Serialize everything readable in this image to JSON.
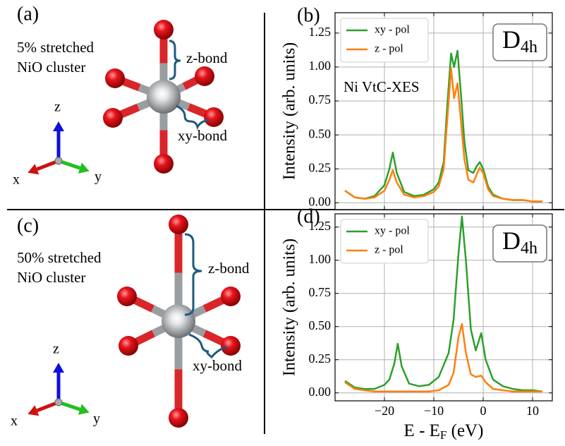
{
  "panels": [
    {
      "label": "(a)",
      "text": [
        "5% stretched",
        "NiO cluster"
      ],
      "z_bond": "z-bond",
      "xy_bond": "xy-bond",
      "axes": [
        "x",
        "y",
        "z"
      ]
    },
    {
      "label": "(c)",
      "text": [
        "50% stretched",
        "NiO cluster"
      ],
      "z_bond": "z-bond",
      "xy_bond": "xy-bond",
      "axes": [
        "x",
        "y",
        "z"
      ]
    }
  ],
  "chart_data": [
    {
      "type": "line",
      "panel_label": "(b)",
      "ylabel": "Intensity (arb. units)",
      "annotation": "Ni VtC-XES",
      "symmetry": {
        "base": "D",
        "sub": "4h"
      },
      "xlim": [
        -30,
        14
      ],
      "ylim": [
        -0.05,
        1.4
      ],
      "xticks": [
        {
          "value": -20,
          "label": "−20"
        },
        {
          "value": -10,
          "label": "−10"
        },
        0,
        10
      ],
      "xtick_labels": false,
      "yticks": [
        {
          "value": 0,
          "label": "0.00"
        },
        {
          "value": 0.25,
          "label": "0.25"
        },
        {
          "value": 0.5,
          "label": "0.50"
        },
        {
          "value": 0.75,
          "label": "0.75"
        },
        {
          "value": 1.0,
          "label": "1.00"
        },
        {
          "value": 1.25,
          "label": "1.25"
        }
      ],
      "grid": true,
      "legend": "upper left",
      "x": [
        -28,
        -26,
        -24,
        -22,
        -20,
        -19,
        -18.3,
        -17.5,
        -16,
        -14,
        -12,
        -10,
        -9,
        -8,
        -7.3,
        -6.5,
        -5.9,
        -5.2,
        -4.5,
        -3.8,
        -3,
        -2,
        -1.3,
        -0.7,
        0,
        1,
        2,
        4,
        6,
        8,
        10,
        12
      ],
      "series": [
        {
          "name": "xy - pol",
          "color": "#2ca02c",
          "values": [
            0.09,
            0.04,
            0.03,
            0.05,
            0.13,
            0.25,
            0.37,
            0.22,
            0.08,
            0.05,
            0.06,
            0.1,
            0.15,
            0.3,
            0.7,
            1.1,
            1.0,
            1.12,
            0.8,
            0.45,
            0.24,
            0.22,
            0.27,
            0.3,
            0.25,
            0.12,
            0.06,
            0.03,
            0.02,
            0.02,
            0.01,
            0.01
          ]
        },
        {
          "name": "z - pol",
          "color": "#ff7f0e",
          "values": [
            0.09,
            0.04,
            0.03,
            0.04,
            0.09,
            0.17,
            0.24,
            0.15,
            0.06,
            0.04,
            0.05,
            0.08,
            0.12,
            0.25,
            0.6,
            0.99,
            0.77,
            0.88,
            0.6,
            0.32,
            0.17,
            0.15,
            0.21,
            0.26,
            0.22,
            0.1,
            0.05,
            0.03,
            0.02,
            0.02,
            0.01,
            0.01
          ]
        }
      ]
    },
    {
      "type": "line",
      "panel_label": "(d)",
      "ylabel": "Intensity (arb. units)",
      "xlabel": {
        "main": "E - E",
        "sub": "F",
        "unit": " (eV)"
      },
      "symmetry": {
        "base": "D",
        "sub": "4h"
      },
      "xlim": [
        -30,
        14
      ],
      "ylim": [
        -0.06,
        1.35
      ],
      "xticks": [
        {
          "value": -20,
          "label": "−20"
        },
        {
          "value": -10,
          "label": "−10"
        },
        0,
        10
      ],
      "xtick_labels": true,
      "yticks": [
        {
          "value": 0,
          "label": "0.00"
        },
        {
          "value": 0.25,
          "label": "0.25"
        },
        {
          "value": 0.5,
          "label": "0.50"
        },
        {
          "value": 0.75,
          "label": "0.75"
        },
        {
          "value": 1.0,
          "label": "1.00"
        },
        {
          "value": 1.25,
          "label": "1.25"
        }
      ],
      "grid": true,
      "legend": "upper left",
      "x": [
        -28,
        -26,
        -24,
        -22,
        -20,
        -19,
        -18,
        -17.3,
        -16.5,
        -15,
        -13,
        -11,
        -9,
        -7,
        -6,
        -5,
        -4.3,
        -3.5,
        -2.5,
        -1.5,
        -0.4,
        0.5,
        2,
        4,
        6,
        8,
        10,
        12
      ],
      "series": [
        {
          "name": "xy - pol",
          "color": "#2ca02c",
          "values": [
            0.09,
            0.04,
            0.03,
            0.03,
            0.06,
            0.1,
            0.22,
            0.37,
            0.2,
            0.07,
            0.05,
            0.06,
            0.12,
            0.3,
            0.55,
            1.05,
            1.33,
            1.0,
            0.48,
            0.32,
            0.45,
            0.25,
            0.1,
            0.05,
            0.03,
            0.02,
            0.02,
            0.01
          ]
        },
        {
          "name": "z - pol",
          "color": "#ff7f0e",
          "values": [
            0.08,
            0.03,
            0.02,
            0.01,
            0.01,
            0.01,
            0.01,
            0.01,
            0.01,
            0.01,
            0.01,
            0.01,
            0.02,
            0.06,
            0.15,
            0.42,
            0.52,
            0.3,
            0.14,
            0.12,
            0.13,
            0.08,
            0.03,
            0.02,
            0.01,
            0.01,
            0.01,
            0.01
          ]
        }
      ]
    }
  ]
}
